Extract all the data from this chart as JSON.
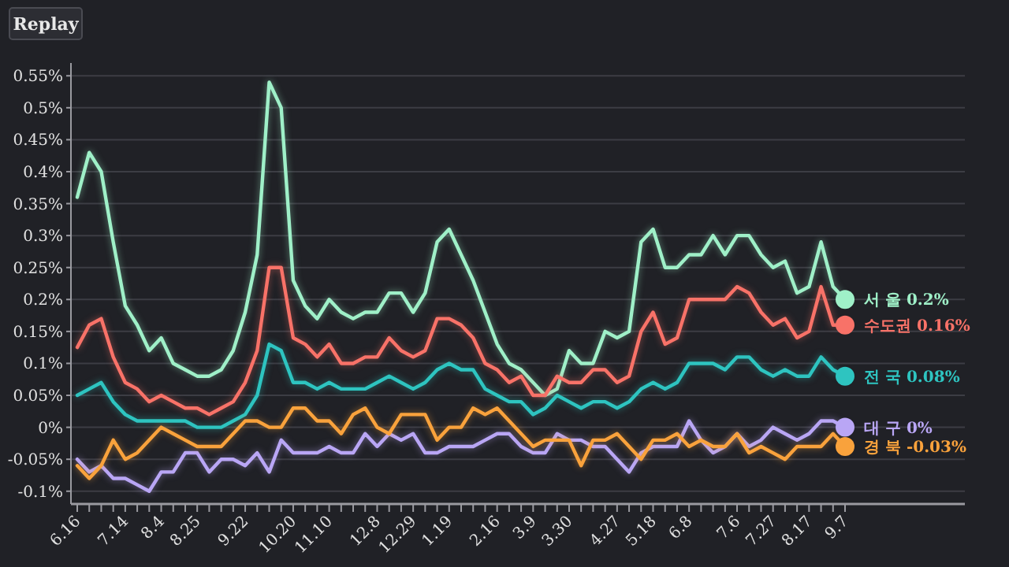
{
  "chart_data": {
    "type": "line",
    "annotations": [
      "Replay"
    ],
    "categories": [
      "6.16",
      null,
      null,
      null,
      "7.14",
      null,
      null,
      "8.4",
      null,
      null,
      "8.25",
      null,
      null,
      null,
      "9.22",
      null,
      null,
      null,
      "10.20",
      null,
      null,
      "11.10",
      null,
      null,
      null,
      "12.8",
      null,
      null,
      "12.29",
      null,
      null,
      "1.19",
      null,
      null,
      null,
      "2.16",
      null,
      null,
      "3.9",
      null,
      null,
      "3.30",
      null,
      null,
      null,
      "4.27",
      null,
      null,
      "5.18",
      null,
      null,
      "6.8",
      null,
      null,
      null,
      "7.6",
      null,
      null,
      "7.27",
      null,
      null,
      "8.17",
      null,
      null,
      "9.7"
    ],
    "ylim": [
      -0.12,
      0.57
    ],
    "yticks": [
      {
        "value": -0.1,
        "label": "-0.1%"
      },
      {
        "value": -0.05,
        "label": "-0.05%"
      },
      {
        "value": 0,
        "label": "0%"
      },
      {
        "value": 0.05,
        "label": "0.05%"
      },
      {
        "value": 0.1,
        "label": "0.1%"
      },
      {
        "value": 0.15,
        "label": "0.15%"
      },
      {
        "value": 0.2,
        "label": "0.2%"
      },
      {
        "value": 0.25,
        "label": "0.25%"
      },
      {
        "value": 0.3,
        "label": "0.3%"
      },
      {
        "value": 0.35,
        "label": "0.35%"
      },
      {
        "value": 0.4,
        "label": "0.4%"
      },
      {
        "value": 0.45,
        "label": "0.45%"
      },
      {
        "value": 0.5,
        "label": "0.5%"
      },
      {
        "value": 0.55,
        "label": "0.55%"
      }
    ],
    "grid": "y",
    "marker": "none",
    "line_style": "solid",
    "series": [
      {
        "name": "서 울",
        "color": "#9ff0c8",
        "values": [
          0.36,
          0.43,
          0.4,
          0.29,
          0.19,
          0.16,
          0.12,
          0.14,
          0.1,
          0.09,
          0.08,
          0.08,
          0.09,
          0.12,
          0.18,
          0.27,
          0.54,
          0.5,
          0.23,
          0.19,
          0.17,
          0.2,
          0.18,
          0.17,
          0.18,
          0.18,
          0.21,
          0.21,
          0.18,
          0.21,
          0.29,
          0.31,
          0.27,
          0.23,
          0.18,
          0.13,
          0.1,
          0.09,
          0.07,
          0.05,
          0.06,
          0.12,
          0.1,
          0.1,
          0.15,
          0.14,
          0.15,
          0.29,
          0.31,
          0.25,
          0.25,
          0.27,
          0.27,
          0.3,
          0.27,
          0.3,
          0.3,
          0.27,
          0.25,
          0.26,
          0.21,
          0.22,
          0.29,
          0.22,
          0.2
        ],
        "value_labels": [
          null,
          null,
          null,
          null,
          null,
          null,
          null,
          null,
          null,
          null,
          null,
          null,
          null,
          null,
          null,
          null,
          null,
          null,
          null,
          null,
          null,
          null,
          null,
          null,
          null,
          null,
          null,
          null,
          null,
          null,
          null,
          null,
          null,
          null,
          null,
          null,
          null,
          null,
          null,
          null,
          null,
          null,
          null,
          null,
          null,
          null,
          null,
          null,
          null,
          null,
          null,
          null,
          null,
          null,
          null,
          null,
          null,
          null,
          null,
          null,
          null,
          null,
          null,
          null,
          "0.2%"
        ]
      },
      {
        "name": "수도권",
        "color": "#f87268",
        "values": [
          0.125,
          0.16,
          0.17,
          0.11,
          0.07,
          0.06,
          0.04,
          0.05,
          0.04,
          0.03,
          0.03,
          0.02,
          0.03,
          0.04,
          0.07,
          0.12,
          0.25,
          0.25,
          0.14,
          0.13,
          0.11,
          0.13,
          0.1,
          0.1,
          0.11,
          0.11,
          0.14,
          0.12,
          0.11,
          0.12,
          0.17,
          0.17,
          0.16,
          0.14,
          0.1,
          0.09,
          0.07,
          0.08,
          0.05,
          0.05,
          0.08,
          0.07,
          0.07,
          0.09,
          0.09,
          0.07,
          0.08,
          0.15,
          0.18,
          0.13,
          0.14,
          0.2,
          0.2,
          0.2,
          0.2,
          0.22,
          0.21,
          0.18,
          0.16,
          0.17,
          0.14,
          0.15,
          0.22,
          0.16,
          0.16
        ],
        "value_labels": [
          null,
          null,
          null,
          null,
          null,
          null,
          null,
          null,
          null,
          null,
          null,
          null,
          null,
          null,
          null,
          null,
          null,
          null,
          null,
          null,
          null,
          null,
          null,
          null,
          null,
          null,
          null,
          null,
          null,
          null,
          null,
          null,
          null,
          null,
          null,
          null,
          null,
          null,
          null,
          null,
          null,
          null,
          null,
          null,
          null,
          null,
          null,
          null,
          null,
          null,
          null,
          null,
          null,
          null,
          null,
          null,
          null,
          null,
          null,
          null,
          null,
          null,
          null,
          null,
          "0.16%"
        ]
      },
      {
        "name": "전 국",
        "color": "#2ec4c0",
        "values": [
          0.05,
          0.06,
          0.07,
          0.04,
          0.02,
          0.01,
          0.01,
          0.01,
          0.01,
          0.01,
          0,
          0,
          0,
          0.01,
          0.02,
          0.05,
          0.13,
          0.12,
          0.07,
          0.07,
          0.06,
          0.07,
          0.06,
          0.06,
          0.06,
          0.07,
          0.08,
          0.07,
          0.06,
          0.07,
          0.09,
          0.1,
          0.09,
          0.09,
          0.06,
          0.05,
          0.04,
          0.04,
          0.02,
          0.03,
          0.05,
          0.04,
          0.03,
          0.04,
          0.04,
          0.03,
          0.04,
          0.06,
          0.07,
          0.06,
          0.07,
          0.1,
          0.1,
          0.1,
          0.09,
          0.11,
          0.11,
          0.09,
          0.08,
          0.09,
          0.08,
          0.08,
          0.11,
          0.09,
          0.08
        ],
        "value_labels": [
          null,
          null,
          null,
          null,
          null,
          null,
          null,
          null,
          null,
          null,
          null,
          null,
          null,
          null,
          null,
          null,
          null,
          null,
          null,
          null,
          null,
          null,
          null,
          null,
          null,
          null,
          null,
          null,
          null,
          null,
          null,
          null,
          null,
          null,
          null,
          null,
          null,
          null,
          null,
          null,
          null,
          null,
          null,
          null,
          null,
          null,
          null,
          null,
          null,
          null,
          null,
          null,
          null,
          null,
          null,
          null,
          null,
          null,
          null,
          null,
          null,
          null,
          null,
          null,
          "0.08%"
        ]
      },
      {
        "name": "대 구",
        "color": "#b9a6f5",
        "values": [
          -0.05,
          -0.07,
          -0.06,
          -0.08,
          -0.08,
          -0.09,
          -0.1,
          -0.07,
          -0.07,
          -0.04,
          -0.04,
          -0.07,
          -0.05,
          -0.05,
          -0.06,
          -0.04,
          -0.07,
          -0.02,
          -0.04,
          -0.04,
          -0.04,
          -0.03,
          -0.04,
          -0.04,
          -0.01,
          -0.03,
          -0.01,
          -0.02,
          -0.01,
          -0.04,
          -0.04,
          -0.03,
          -0.03,
          -0.03,
          -0.02,
          -0.01,
          -0.01,
          -0.03,
          -0.04,
          -0.04,
          -0.01,
          -0.02,
          -0.02,
          -0.03,
          -0.03,
          -0.05,
          -0.07,
          -0.04,
          -0.03,
          -0.03,
          -0.03,
          0.01,
          -0.02,
          -0.04,
          -0.03,
          -0.01,
          -0.03,
          -0.02,
          0,
          -0.01,
          -0.02,
          -0.01,
          0.01,
          0.01,
          0
        ],
        "value_labels": [
          null,
          null,
          null,
          null,
          null,
          null,
          null,
          null,
          null,
          null,
          null,
          null,
          null,
          null,
          null,
          null,
          null,
          null,
          null,
          null,
          null,
          null,
          null,
          null,
          null,
          null,
          null,
          null,
          null,
          null,
          null,
          null,
          null,
          null,
          null,
          null,
          null,
          null,
          null,
          null,
          null,
          null,
          null,
          null,
          null,
          null,
          null,
          null,
          null,
          null,
          null,
          null,
          null,
          null,
          null,
          null,
          null,
          null,
          null,
          null,
          null,
          null,
          null,
          null,
          "0%"
        ]
      },
      {
        "name": "경 북",
        "color": "#f9a23c",
        "values": [
          -0.06,
          -0.08,
          -0.06,
          -0.02,
          -0.05,
          -0.04,
          -0.02,
          0,
          -0.01,
          -0.02,
          -0.03,
          -0.03,
          -0.03,
          -0.01,
          0.01,
          0.01,
          0,
          0,
          0.03,
          0.03,
          0.01,
          0.01,
          -0.01,
          0.02,
          0.03,
          0,
          -0.01,
          0.02,
          0.02,
          0.02,
          -0.02,
          0,
          0,
          0.03,
          0.02,
          0.03,
          0.01,
          -0.01,
          -0.03,
          -0.02,
          -0.02,
          -0.02,
          -0.06,
          -0.02,
          -0.02,
          -0.01,
          -0.03,
          -0.05,
          -0.02,
          -0.02,
          -0.01,
          -0.03,
          -0.02,
          -0.03,
          -0.03,
          -0.01,
          -0.04,
          -0.03,
          -0.04,
          -0.05,
          -0.03,
          -0.03,
          -0.03,
          -0.01,
          -0.03
        ],
        "value_labels": [
          null,
          null,
          null,
          null,
          null,
          null,
          null,
          null,
          null,
          null,
          null,
          null,
          null,
          null,
          null,
          null,
          null,
          null,
          null,
          null,
          null,
          null,
          null,
          null,
          null,
          null,
          null,
          null,
          null,
          null,
          null,
          null,
          null,
          null,
          null,
          null,
          null,
          null,
          null,
          null,
          null,
          null,
          null,
          null,
          null,
          null,
          null,
          null,
          null,
          null,
          null,
          null,
          null,
          null,
          null,
          null,
          null,
          null,
          null,
          null,
          null,
          null,
          null,
          null,
          "-0.03%"
        ]
      }
    ]
  }
}
